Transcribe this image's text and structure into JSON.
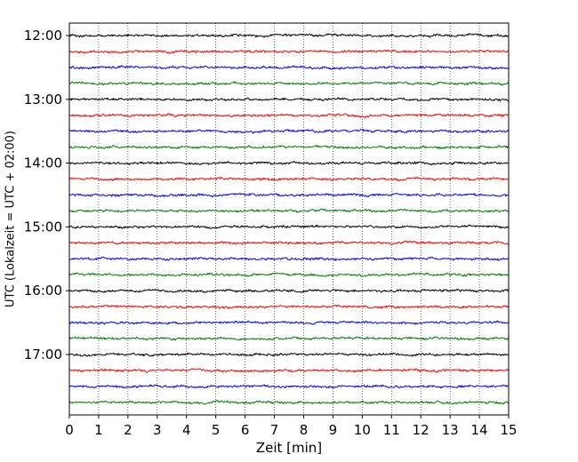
{
  "chart_data": {
    "type": "line",
    "xlabel": "Zeit  [min]",
    "ylabel": "UTC (Lokalzeit = UTC + 02:00)",
    "xlim": [
      0,
      15
    ],
    "x_ticks": [
      "0",
      "1",
      "2",
      "3",
      "4",
      "5",
      "6",
      "7",
      "8",
      "9",
      "10",
      "11",
      "12",
      "13",
      "14",
      "15"
    ],
    "y_tick_labels": [
      "12:00",
      "13:00",
      "14:00",
      "15:00",
      "16:00",
      "17:00"
    ],
    "grid": {
      "x": true,
      "style": "dotted",
      "y": false
    },
    "trace_interval_minutes": 15,
    "traces_start": "12:00",
    "traces_end": "17:45",
    "color_cycle": [
      "#000000",
      "#ff0000",
      "#0000ff",
      "#008000"
    ],
    "traces": [
      {
        "label": "12:00",
        "color": "#000000"
      },
      {
        "label": "12:15",
        "color": "#ff0000"
      },
      {
        "label": "12:30",
        "color": "#0000ff"
      },
      {
        "label": "12:45",
        "color": "#008000"
      },
      {
        "label": "13:00",
        "color": "#000000"
      },
      {
        "label": "13:15",
        "color": "#ff0000"
      },
      {
        "label": "13:30",
        "color": "#0000ff"
      },
      {
        "label": "13:45",
        "color": "#008000"
      },
      {
        "label": "14:00",
        "color": "#000000"
      },
      {
        "label": "14:15",
        "color": "#ff0000"
      },
      {
        "label": "14:30",
        "color": "#0000ff"
      },
      {
        "label": "14:45",
        "color": "#008000"
      },
      {
        "label": "15:00",
        "color": "#000000"
      },
      {
        "label": "15:15",
        "color": "#ff0000"
      },
      {
        "label": "15:30",
        "color": "#0000ff"
      },
      {
        "label": "15:45",
        "color": "#008000"
      },
      {
        "label": "16:00",
        "color": "#000000"
      },
      {
        "label": "16:15",
        "color": "#ff0000"
      },
      {
        "label": "16:30",
        "color": "#0000ff"
      },
      {
        "label": "16:45",
        "color": "#008000"
      },
      {
        "label": "17:00",
        "color": "#000000"
      },
      {
        "label": "17:15",
        "color": "#ff0000"
      },
      {
        "label": "17:30",
        "color": "#0000ff"
      },
      {
        "label": "17:45",
        "color": "#008000"
      }
    ]
  }
}
